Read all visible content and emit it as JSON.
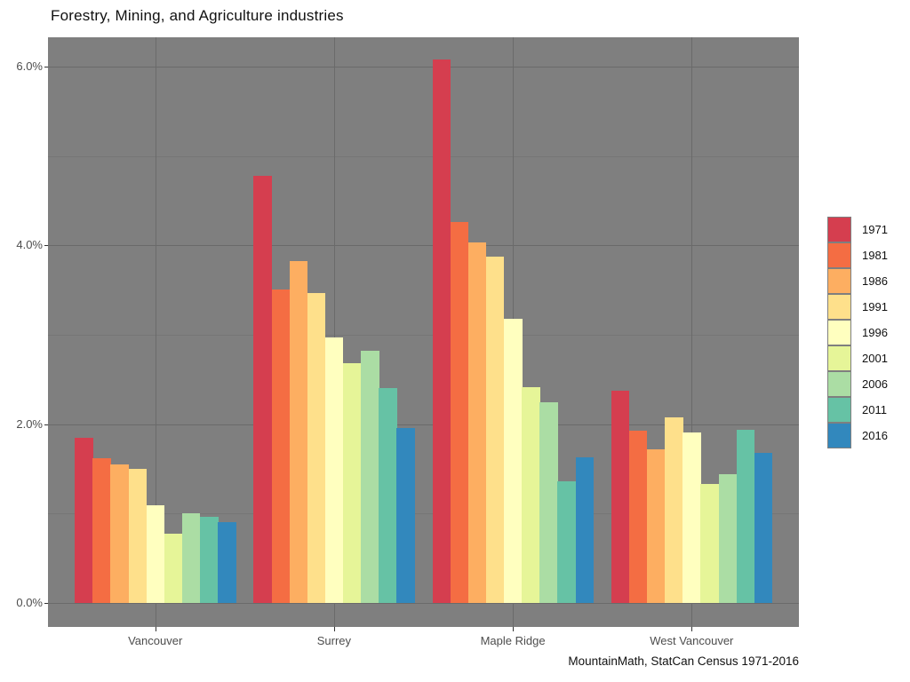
{
  "title": "Forestry, Mining, and Agriculture industries",
  "caption": "MountainMath, StatCan Census 1971-2016",
  "chart_data": {
    "type": "bar",
    "title": "Forestry, Mining, and Agriculture industries",
    "caption": "MountainMath, StatCan Census 1971-2016",
    "categories": [
      "Vancouver",
      "Surrey",
      "Maple Ridge",
      "West Vancouver"
    ],
    "series": [
      {
        "name": "1971",
        "color": "#d53e4f",
        "values": [
          1.85,
          4.78,
          6.08,
          2.37
        ]
      },
      {
        "name": "1981",
        "color": "#f46d43",
        "values": [
          1.62,
          3.51,
          4.26,
          1.93
        ]
      },
      {
        "name": "1986",
        "color": "#fdae61",
        "values": [
          1.55,
          3.83,
          4.03,
          1.72
        ]
      },
      {
        "name": "1991",
        "color": "#fee08b",
        "values": [
          1.5,
          3.47,
          3.88,
          2.08
        ]
      },
      {
        "name": "1996",
        "color": "#ffffbf",
        "values": [
          1.09,
          2.97,
          3.18,
          1.91
        ]
      },
      {
        "name": "2001",
        "color": "#e6f598",
        "values": [
          0.77,
          2.68,
          2.41,
          1.33
        ]
      },
      {
        "name": "2006",
        "color": "#abdda4",
        "values": [
          1.0,
          2.82,
          2.25,
          1.44
        ]
      },
      {
        "name": "2011",
        "color": "#66c2a5",
        "values": [
          0.96,
          2.4,
          1.36,
          1.94
        ]
      },
      {
        "name": "2016",
        "color": "#3288bd",
        "values": [
          0.9,
          1.96,
          1.63,
          1.68
        ]
      }
    ],
    "ylabel": "",
    "xlabel": "",
    "y_ticks": [
      {
        "value": 0,
        "label": "0.0%"
      },
      {
        "value": 2,
        "label": "2.0%"
      },
      {
        "value": 4,
        "label": "4.0%"
      },
      {
        "value": 6,
        "label": "6.0%"
      }
    ],
    "y_minor_ticks": [
      1,
      3,
      5
    ],
    "ylim": [
      -0.27,
      6.33
    ],
    "grid": "on",
    "legend_position": "right",
    "colors": {
      "panel_bg": "#7f7f7f",
      "grid_major": "#6a6a6a",
      "grid_minor": "#767676",
      "axis_text": "#4d4d4d",
      "tick_mark": "#333333",
      "title_text": "#111111"
    }
  }
}
